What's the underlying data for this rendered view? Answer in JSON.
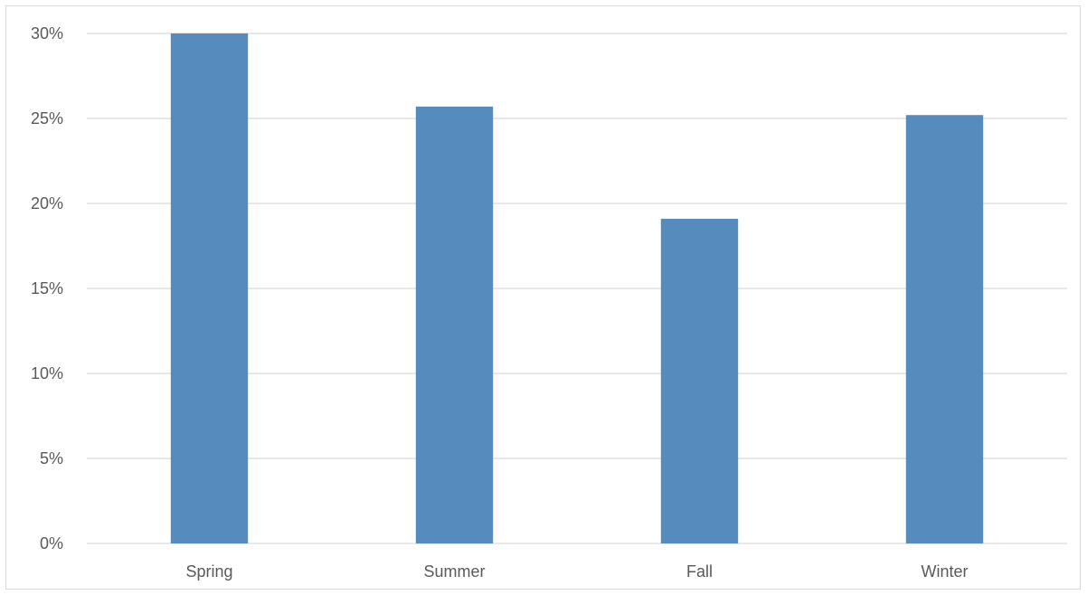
{
  "chart_data": {
    "type": "bar",
    "categories": [
      "Spring",
      "Summer",
      "Fall",
      "Winter"
    ],
    "values": [
      30,
      25.7,
      19.1,
      25.2
    ],
    "value_format": "percent",
    "yticks": [
      "0%",
      "5%",
      "10%",
      "15%",
      "20%",
      "25%",
      "30%"
    ],
    "ylim": [
      0,
      30
    ],
    "ytick_step": 5,
    "grid": true,
    "legend": "none",
    "title": "",
    "xlabel": "",
    "ylabel": "",
    "colors": {
      "bar": "#568BBD",
      "grid": "#D9D9D9",
      "axis_text": "#595959",
      "frame": "#D9D9D9"
    }
  }
}
